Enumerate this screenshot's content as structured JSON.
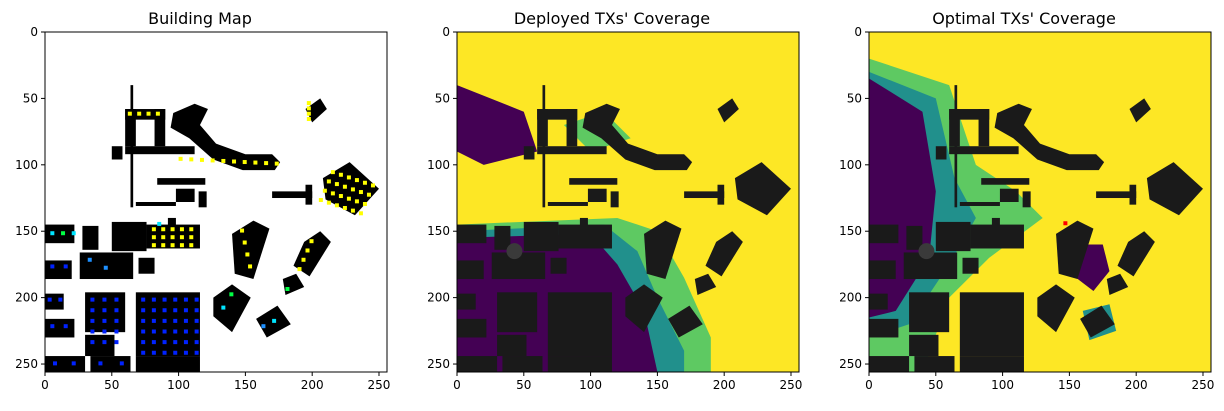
{
  "figure": {
    "panels": [
      {
        "title": "Building Map"
      },
      {
        "title": "Deployed TXs' Coverage"
      },
      {
        "title": "Optimal TXs' Coverage"
      }
    ]
  },
  "chart_data": [
    {
      "type": "heatmap",
      "title": "Building Map",
      "xlabel": "",
      "ylabel": "",
      "xlim": [
        0,
        256
      ],
      "ylim": [
        256,
        0
      ],
      "x_ticks": [
        0,
        50,
        100,
        150,
        200,
        250
      ],
      "y_ticks": [
        0,
        50,
        100,
        150,
        200,
        250
      ],
      "grid": false,
      "background_color": "#ffffff",
      "building_color": "#000000",
      "marker_colors": [
        "#ffff00",
        "#00e5ff",
        "#1e90ff",
        "#0022ff",
        "#00ff44"
      ]
    },
    {
      "type": "heatmap",
      "title": "Deployed TXs' Coverage",
      "xlabel": "",
      "ylabel": "",
      "xlim": [
        0,
        256
      ],
      "ylim": [
        256,
        0
      ],
      "x_ticks": [
        0,
        50,
        100,
        150,
        200,
        250
      ],
      "y_ticks": [
        0,
        50,
        100,
        150,
        200,
        250
      ],
      "grid": false,
      "colormap": [
        "#440154",
        "#21908c",
        "#5ec962",
        "#fde725"
      ],
      "building_color": "#1a1a1a"
    },
    {
      "type": "heatmap",
      "title": "Optimal TXs' Coverage",
      "xlabel": "",
      "ylabel": "",
      "xlim": [
        0,
        256
      ],
      "ylim": [
        256,
        0
      ],
      "x_ticks": [
        0,
        50,
        100,
        150,
        200,
        250
      ],
      "y_ticks": [
        0,
        50,
        100,
        150,
        200,
        250
      ],
      "grid": false,
      "colormap": [
        "#440154",
        "#21908c",
        "#5ec962",
        "#fde725"
      ],
      "building_color": "#1a1a1a",
      "tx_marker_color": "#ff0000"
    }
  ]
}
